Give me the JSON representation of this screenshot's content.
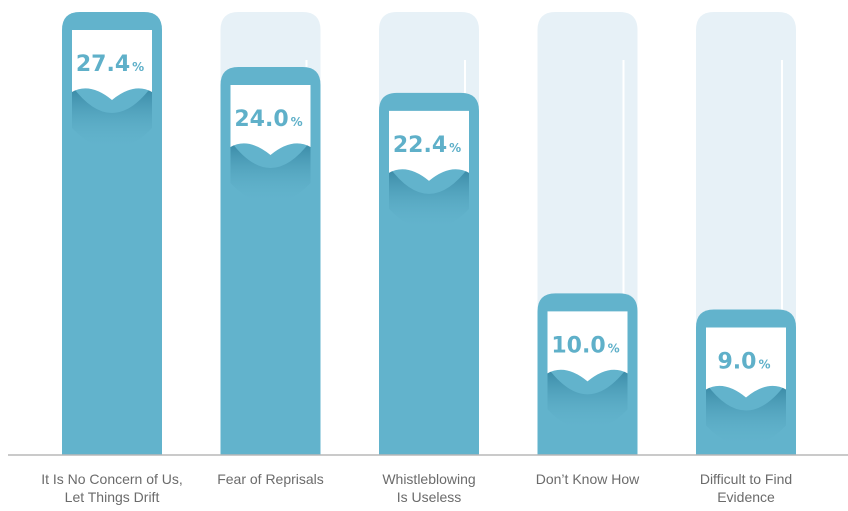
{
  "chart_data": {
    "type": "bar",
    "categories": [
      [
        "It Is No Concern of Us,",
        "Let Things Drift"
      ],
      [
        "Fear of Reprisals"
      ],
      [
        "Whistleblowing",
        "Is Useless"
      ],
      [
        "Don’t Know How"
      ],
      [
        "Difficult to Find",
        "Evidence"
      ]
    ],
    "values": [
      27.4,
      24.0,
      22.4,
      10.0,
      9.0
    ],
    "value_labels": [
      "27.4",
      "24.0",
      "22.4",
      "10.0",
      "9.0"
    ],
    "unit_suffix": "%",
    "ylim": [
      0,
      27.4
    ],
    "grid": false,
    "legend": "none",
    "title": "",
    "xlabel": "",
    "ylabel": ""
  },
  "colors": {
    "bar": "#62b3cc",
    "bar_dark": "#3c8aa6",
    "track": "#e7f1f7",
    "value_text": "#5fb0c9",
    "axis": "#b8b8b8"
  }
}
